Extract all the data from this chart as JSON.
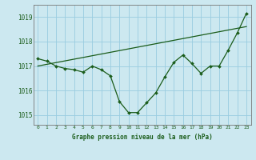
{
  "hours": [
    0,
    1,
    2,
    3,
    4,
    5,
    6,
    7,
    8,
    9,
    10,
    11,
    12,
    13,
    14,
    15,
    16,
    17,
    18,
    19,
    20,
    21,
    22,
    23
  ],
  "pressure_line": [
    1017.3,
    1017.2,
    1017.0,
    1016.9,
    1016.85,
    1016.75,
    1017.0,
    1016.85,
    1016.6,
    1015.55,
    1015.1,
    1015.1,
    1015.5,
    1015.9,
    1016.55,
    1017.15,
    1017.45,
    1017.1,
    1016.7,
    1017.0,
    1017.0,
    1017.65,
    1018.35,
    1019.15
  ],
  "trend_line_x": [
    0,
    23
  ],
  "trend_line_y": [
    1017.0,
    1018.61
  ],
  "bg_color": "#cce8f0",
  "grid_color": "#99cce0",
  "line_color": "#1a5c1a",
  "text_color": "#1a5c1a",
  "ylabel_ticks": [
    1015,
    1016,
    1017,
    1018,
    1019
  ],
  "xlim": [
    -0.5,
    23.5
  ],
  "ylim": [
    1014.6,
    1019.5
  ],
  "xlabel": "Graphe pression niveau de la mer (hPa)"
}
